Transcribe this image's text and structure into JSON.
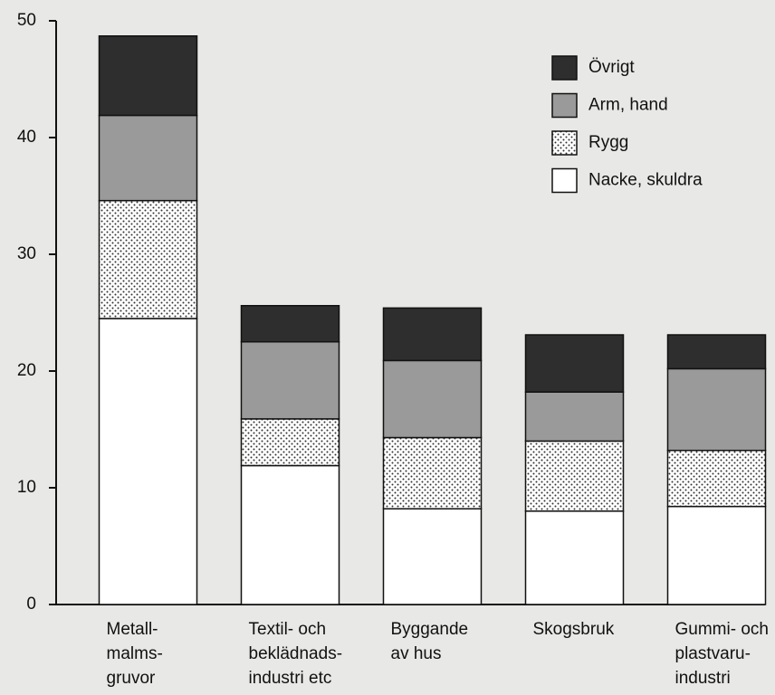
{
  "chart_data": {
    "type": "stacked_bar",
    "categories": [
      [
        "Metall-",
        "malms-",
        "gruvor"
      ],
      [
        "Textil- och",
        "beklädnads-",
        "industri etc"
      ],
      [
        "Byggande",
        "av hus"
      ],
      [
        "Skogsbruk"
      ],
      [
        "Gummi- och",
        "plastvaru-",
        "industri"
      ]
    ],
    "series": [
      {
        "name": "Nacke, skuldra",
        "color": "#ffffff",
        "values": [
          24.5,
          11.9,
          8.2,
          8.0,
          8.4
        ]
      },
      {
        "name": "Rygg",
        "color": "#ffffff",
        "pattern": "dots",
        "values": [
          10.1,
          4.0,
          6.1,
          6.0,
          4.8
        ]
      },
      {
        "name": "Arm, hand",
        "color": "#9a9a9a",
        "values": [
          7.3,
          6.6,
          6.6,
          4.2,
          7.0
        ]
      },
      {
        "name": "Övrigt",
        "color": "#2e2e2e",
        "values": [
          6.8,
          3.1,
          4.5,
          4.9,
          2.9
        ]
      }
    ],
    "ylim": [
      0,
      50
    ],
    "yticks": [
      0,
      10,
      20,
      30,
      40,
      50
    ],
    "legend": "upper right"
  }
}
